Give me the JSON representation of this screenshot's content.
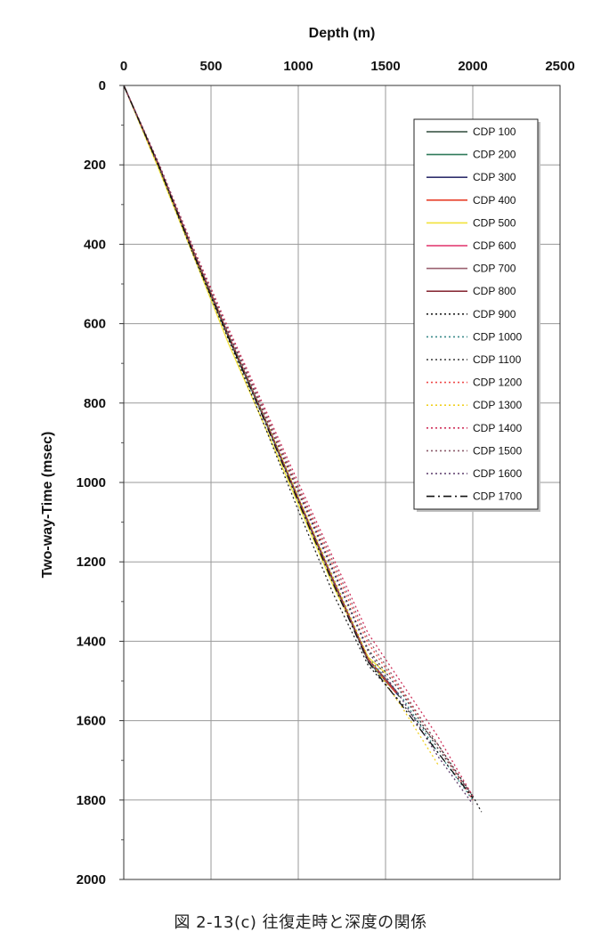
{
  "caption": "図 2-13(c)  往復走時と深度の関係",
  "chart_data": {
    "type": "line",
    "xlabel": "Depth (m)",
    "ylabel": "Two-way-Time (msec)",
    "xlim": [
      0,
      2500
    ],
    "ylim": [
      0,
      2000
    ],
    "y_inverted": true,
    "x_axis_position": "top",
    "x_ticks": [
      "0",
      "500",
      "1000",
      "1500",
      "2000",
      "2500"
    ],
    "y_ticks": [
      "0",
      "200",
      "400",
      "600",
      "800",
      "1000",
      "1200",
      "1400",
      "1600",
      "1800",
      "2000"
    ],
    "grid": true,
    "legend_position": "top-right",
    "series": [
      {
        "name": "CDP 100",
        "color": "#2e4a3a",
        "dash": "solid",
        "points": [
          [
            0,
            0
          ],
          [
            200,
            200
          ],
          [
            400,
            420
          ],
          [
            600,
            630
          ],
          [
            800,
            830
          ],
          [
            1000,
            1040
          ],
          [
            1200,
            1250
          ],
          [
            1400,
            1450
          ],
          [
            1580,
            1540
          ]
        ]
      },
      {
        "name": "CDP 200",
        "color": "#2f7a5a",
        "dash": "solid",
        "points": [
          [
            0,
            0
          ],
          [
            200,
            205
          ],
          [
            400,
            425
          ],
          [
            600,
            635
          ],
          [
            800,
            835
          ],
          [
            1000,
            1045
          ],
          [
            1200,
            1250
          ],
          [
            1400,
            1450
          ],
          [
            1560,
            1530
          ]
        ]
      },
      {
        "name": "CDP 300",
        "color": "#30306e",
        "dash": "solid",
        "points": [
          [
            0,
            0
          ],
          [
            200,
            200
          ],
          [
            400,
            420
          ],
          [
            600,
            632
          ],
          [
            800,
            832
          ],
          [
            1000,
            1042
          ],
          [
            1200,
            1248
          ],
          [
            1400,
            1448
          ],
          [
            1570,
            1535
          ]
        ]
      },
      {
        "name": "CDP 400",
        "color": "#e8402a",
        "dash": "solid",
        "points": [
          [
            0,
            0
          ],
          [
            200,
            200
          ],
          [
            400,
            418
          ],
          [
            600,
            628
          ],
          [
            800,
            830
          ],
          [
            1000,
            1040
          ],
          [
            1200,
            1246
          ],
          [
            1400,
            1446
          ],
          [
            1560,
            1530
          ]
        ]
      },
      {
        "name": "CDP 500",
        "color": "#f2e23a",
        "dash": "solid",
        "points": [
          [
            0,
            0
          ],
          [
            200,
            210
          ],
          [
            400,
            430
          ],
          [
            600,
            650
          ],
          [
            800,
            850
          ],
          [
            1000,
            1055
          ],
          [
            1200,
            1260
          ],
          [
            1400,
            1440
          ],
          [
            1500,
            1480
          ]
        ]
      },
      {
        "name": "CDP 600",
        "color": "#e0306a",
        "dash": "solid",
        "points": [
          [
            0,
            0
          ],
          [
            200,
            200
          ],
          [
            400,
            420
          ],
          [
            600,
            630
          ],
          [
            800,
            830
          ],
          [
            1000,
            1040
          ],
          [
            1200,
            1245
          ],
          [
            1400,
            1445
          ],
          [
            1550,
            1520
          ]
        ]
      },
      {
        "name": "CDP 700",
        "color": "#9a6070",
        "dash": "solid",
        "points": [
          [
            0,
            0
          ],
          [
            200,
            202
          ],
          [
            400,
            422
          ],
          [
            600,
            632
          ],
          [
            800,
            832
          ],
          [
            1000,
            1042
          ],
          [
            1200,
            1248
          ],
          [
            1400,
            1448
          ],
          [
            1560,
            1525
          ]
        ]
      },
      {
        "name": "CDP 800",
        "color": "#8a2f3a",
        "dash": "solid",
        "points": [
          [
            0,
            0
          ],
          [
            200,
            200
          ],
          [
            400,
            420
          ],
          [
            600,
            630
          ],
          [
            800,
            830
          ],
          [
            1000,
            1040
          ],
          [
            1200,
            1245
          ],
          [
            1400,
            1445
          ],
          [
            1570,
            1530
          ]
        ]
      },
      {
        "name": "CDP 900",
        "color": "#222222",
        "dash": "dotted",
        "points": [
          [
            0,
            0
          ],
          [
            200,
            205
          ],
          [
            400,
            428
          ],
          [
            600,
            640
          ],
          [
            800,
            850
          ],
          [
            1000,
            1070
          ],
          [
            1200,
            1280
          ],
          [
            1400,
            1460
          ],
          [
            1600,
            1560
          ],
          [
            1800,
            1660
          ],
          [
            2000,
            1790
          ],
          [
            2050,
            1830
          ]
        ]
      },
      {
        "name": "CDP 1000",
        "color": "#3a8a8a",
        "dash": "dotted",
        "points": [
          [
            0,
            0
          ],
          [
            200,
            200
          ],
          [
            400,
            418
          ],
          [
            600,
            628
          ],
          [
            800,
            828
          ],
          [
            1000,
            1035
          ],
          [
            1200,
            1238
          ],
          [
            1400,
            1440
          ],
          [
            1600,
            1545
          ],
          [
            1800,
            1680
          ],
          [
            2000,
            1800
          ]
        ]
      },
      {
        "name": "CDP 1100",
        "color": "#3a3a3a",
        "dash": "dotted",
        "points": [
          [
            0,
            0
          ],
          [
            200,
            195
          ],
          [
            400,
            412
          ],
          [
            600,
            620
          ],
          [
            800,
            815
          ],
          [
            1000,
            1020
          ],
          [
            1200,
            1220
          ],
          [
            1400,
            1420
          ],
          [
            1600,
            1535
          ],
          [
            1800,
            1670
          ],
          [
            2000,
            1790
          ]
        ]
      },
      {
        "name": "CDP 1200",
        "color": "#f04a4a",
        "dash": "dotted",
        "points": [
          [
            0,
            0
          ],
          [
            200,
            198
          ],
          [
            400,
            415
          ],
          [
            600,
            620
          ],
          [
            800,
            815
          ],
          [
            1000,
            1015
          ],
          [
            1200,
            1210
          ],
          [
            1400,
            1405
          ],
          [
            1600,
            1530
          ],
          [
            1800,
            1660
          ],
          [
            2000,
            1800
          ]
        ]
      },
      {
        "name": "CDP 1300",
        "color": "#f0d020",
        "dash": "dotted",
        "points": [
          [
            0,
            0
          ],
          [
            200,
            200
          ],
          [
            400,
            420
          ],
          [
            600,
            625
          ],
          [
            800,
            825
          ],
          [
            1000,
            1035
          ],
          [
            1200,
            1240
          ],
          [
            1400,
            1440
          ],
          [
            1600,
            1570
          ],
          [
            1800,
            1710
          ]
        ]
      },
      {
        "name": "CDP 1400",
        "color": "#d0305a",
        "dash": "dotted",
        "points": [
          [
            0,
            0
          ],
          [
            200,
            196
          ],
          [
            400,
            410
          ],
          [
            600,
            612
          ],
          [
            800,
            805
          ],
          [
            1000,
            1000
          ],
          [
            1200,
            1190
          ],
          [
            1400,
            1380
          ],
          [
            1600,
            1510
          ],
          [
            1800,
            1640
          ],
          [
            2000,
            1790
          ]
        ]
      },
      {
        "name": "CDP 1500",
        "color": "#8a5a6a",
        "dash": "dotted",
        "points": [
          [
            0,
            0
          ],
          [
            200,
            198
          ],
          [
            400,
            414
          ],
          [
            600,
            618
          ],
          [
            800,
            812
          ],
          [
            1000,
            1010
          ],
          [
            1200,
            1200
          ],
          [
            1400,
            1395
          ],
          [
            1600,
            1525
          ],
          [
            1800,
            1660
          ],
          [
            2000,
            1795
          ]
        ]
      },
      {
        "name": "CDP 1600",
        "color": "#5a3a6a",
        "dash": "dotted",
        "points": [
          [
            0,
            0
          ],
          [
            200,
            200
          ],
          [
            400,
            418
          ],
          [
            600,
            624
          ],
          [
            800,
            822
          ],
          [
            1000,
            1025
          ],
          [
            1200,
            1225
          ],
          [
            1400,
            1425
          ],
          [
            1600,
            1550
          ],
          [
            1800,
            1690
          ],
          [
            2000,
            1810
          ]
        ]
      },
      {
        "name": "CDP 1700",
        "color": "#111111",
        "dash": "dashdot",
        "points": [
          [
            0,
            0
          ],
          [
            200,
            202
          ],
          [
            400,
            425
          ],
          [
            600,
            635
          ],
          [
            800,
            838
          ],
          [
            1000,
            1048
          ],
          [
            1200,
            1255
          ],
          [
            1400,
            1452
          ],
          [
            1600,
            1565
          ],
          [
            1800,
            1680
          ],
          [
            2000,
            1795
          ]
        ]
      }
    ]
  }
}
